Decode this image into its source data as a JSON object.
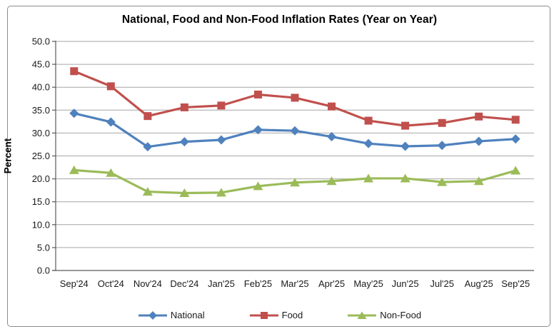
{
  "window": {
    "background": "#ffffff",
    "frame_border_color": "#8c8c8c"
  },
  "chart_data": {
    "type": "line",
    "title": "National, Food and Non-Food Inflation Rates (Year on Year)",
    "xlabel": "",
    "ylabel": "Percent",
    "ylim": [
      0,
      50
    ],
    "ytick_step": 5,
    "ytick_decimals": 1,
    "grid": "horizontal",
    "legend_position": "bottom",
    "categories": [
      "Sep'24",
      "Oct'24",
      "Nov'24",
      "Dec'24",
      "Jan'25",
      "Feb'25",
      "Mar'25",
      "Apr'25",
      "May'25",
      "Jun'25",
      "Jul'25",
      "Aug'25",
      "Sep'25"
    ],
    "series": [
      {
        "name": "National",
        "color": "#4F81BD",
        "marker": "diamond",
        "values": [
          34.3,
          32.4,
          27.0,
          28.1,
          28.5,
          30.7,
          30.5,
          29.2,
          27.7,
          27.1,
          27.3,
          28.2,
          28.7
        ]
      },
      {
        "name": "Food",
        "color": "#C0504D",
        "marker": "square",
        "values": [
          43.5,
          40.2,
          33.7,
          35.6,
          36.0,
          38.4,
          37.7,
          35.8,
          32.7,
          31.6,
          32.2,
          33.6,
          32.9
        ]
      },
      {
        "name": "Non-Food",
        "color": "#9BBB59",
        "marker": "triangle",
        "values": [
          21.9,
          21.3,
          17.2,
          16.9,
          17.0,
          18.4,
          19.2,
          19.5,
          20.1,
          20.1,
          19.3,
          19.5,
          21.8
        ]
      }
    ],
    "style": {
      "gridline_color": "#A6A6A6",
      "axis_color": "#595959",
      "tick_text_color": "#1a1a1a",
      "line_width": 3.2,
      "marker_size": 11
    }
  }
}
